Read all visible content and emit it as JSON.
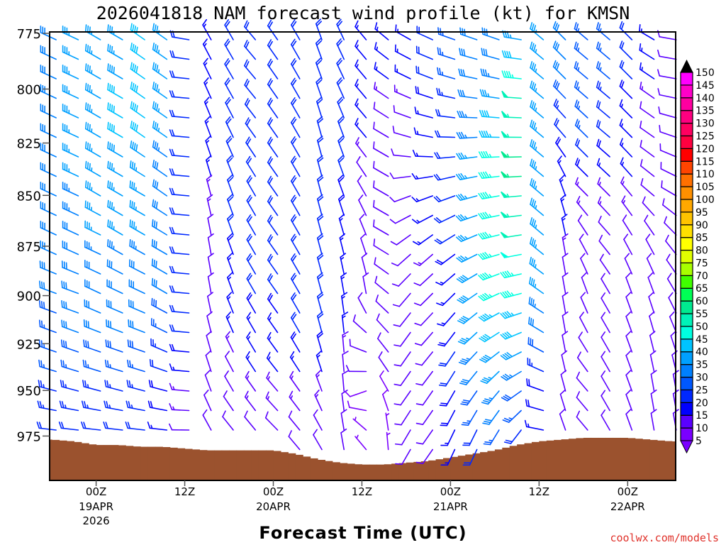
{
  "credit": "coolwx.com/models",
  "chart_data": {
    "type": "wind-barb-profile",
    "title": "2026041818 NAM forecast wind profile (kt) for KMSN",
    "xlabel": "Forecast Time (UTC)",
    "ylabel": "",
    "ylim": [
      1000,
      775
    ],
    "y_ticks": [
      775,
      800,
      825,
      850,
      875,
      900,
      925,
      950,
      975
    ],
    "x_ticks": [
      {
        "hour": 0,
        "label": "00Z",
        "date": "19APR",
        "year": "2026"
      },
      {
        "hour": 12,
        "label": "12Z"
      },
      {
        "hour": 24,
        "label": "00Z",
        "date": "20APR"
      },
      {
        "hour": 36,
        "label": "12Z"
      },
      {
        "hour": 48,
        "label": "00Z",
        "date": "21APR"
      },
      {
        "hour": 60,
        "label": "12Z"
      },
      {
        "hour": 72,
        "label": "00Z",
        "date": "22APR"
      }
    ],
    "xlim_hours": [
      -6.3,
      78.5
    ],
    "time_hours": [
      -6,
      -3,
      0,
      3,
      6,
      9,
      12,
      15,
      18,
      21,
      24,
      27,
      30,
      33,
      36,
      39,
      42,
      45,
      48,
      51,
      54,
      57,
      60,
      63,
      66,
      69,
      72,
      75,
      78
    ],
    "control_levels": [
      775,
      800,
      825,
      850,
      875,
      900,
      925,
      950,
      975
    ],
    "wind_dir_speed": [
      [
        [
          295,
          30
        ],
        [
          295,
          30
        ],
        [
          295,
          30
        ],
        [
          295,
          30
        ],
        [
          295,
          30
        ],
        [
          290,
          30
        ],
        [
          290,
          25
        ],
        [
          285,
          25
        ],
        [
          275,
          20
        ]
      ],
      [
        [
          295,
          35
        ],
        [
          295,
          35
        ],
        [
          295,
          35
        ],
        [
          295,
          35
        ],
        [
          295,
          30
        ],
        [
          290,
          30
        ],
        [
          290,
          30
        ],
        [
          285,
          25
        ],
        [
          275,
          20
        ]
      ],
      [
        [
          300,
          35
        ],
        [
          300,
          35
        ],
        [
          300,
          35
        ],
        [
          300,
          35
        ],
        [
          295,
          35
        ],
        [
          295,
          30
        ],
        [
          290,
          30
        ],
        [
          285,
          25
        ],
        [
          275,
          20
        ]
      ],
      [
        [
          300,
          35
        ],
        [
          300,
          40
        ],
        [
          300,
          40
        ],
        [
          300,
          35
        ],
        [
          300,
          35
        ],
        [
          295,
          30
        ],
        [
          290,
          30
        ],
        [
          285,
          25
        ],
        [
          275,
          20
        ]
      ],
      [
        [
          305,
          40
        ],
        [
          305,
          40
        ],
        [
          305,
          40
        ],
        [
          300,
          35
        ],
        [
          300,
          35
        ],
        [
          295,
          30
        ],
        [
          290,
          30
        ],
        [
          285,
          25
        ],
        [
          275,
          20
        ]
      ],
      [
        [
          305,
          35
        ],
        [
          305,
          35
        ],
        [
          305,
          35
        ],
        [
          305,
          30
        ],
        [
          300,
          30
        ],
        [
          300,
          30
        ],
        [
          295,
          25
        ],
        [
          285,
          20
        ],
        [
          275,
          15
        ]
      ],
      [
        [
          280,
          20
        ],
        [
          275,
          20
        ],
        [
          275,
          20
        ],
        [
          275,
          20
        ],
        [
          275,
          20
        ],
        [
          275,
          20
        ],
        [
          275,
          20
        ],
        [
          275,
          15
        ],
        [
          270,
          10
        ]
      ],
      [
        [
          330,
          15
        ],
        [
          335,
          15
        ],
        [
          340,
          15
        ],
        [
          345,
          15
        ],
        [
          350,
          10
        ],
        [
          350,
          10
        ],
        [
          345,
          10
        ],
        [
          340,
          10
        ],
        [
          330,
          10
        ]
      ],
      [
        [
          330,
          20
        ],
        [
          330,
          20
        ],
        [
          335,
          20
        ],
        [
          340,
          20
        ],
        [
          340,
          20
        ],
        [
          340,
          15
        ],
        [
          335,
          15
        ],
        [
          330,
          10
        ],
        [
          320,
          10
        ]
      ],
      [
        [
          320,
          20
        ],
        [
          320,
          20
        ],
        [
          325,
          20
        ],
        [
          330,
          20
        ],
        [
          330,
          20
        ],
        [
          330,
          20
        ],
        [
          330,
          15
        ],
        [
          325,
          15
        ],
        [
          320,
          10
        ]
      ],
      [
        [
          325,
          20
        ],
        [
          325,
          20
        ],
        [
          325,
          20
        ],
        [
          325,
          20
        ],
        [
          325,
          20
        ],
        [
          325,
          20
        ],
        [
          325,
          15
        ],
        [
          320,
          15
        ],
        [
          315,
          10
        ]
      ],
      [
        [
          330,
          20
        ],
        [
          330,
          20
        ],
        [
          330,
          20
        ],
        [
          330,
          20
        ],
        [
          330,
          20
        ],
        [
          330,
          20
        ],
        [
          330,
          20
        ],
        [
          325,
          15
        ],
        [
          320,
          10
        ]
      ],
      [
        [
          340,
          20
        ],
        [
          340,
          20
        ],
        [
          345,
          20
        ],
        [
          345,
          20
        ],
        [
          345,
          20
        ],
        [
          345,
          20
        ],
        [
          345,
          20
        ],
        [
          340,
          15
        ],
        [
          330,
          10
        ]
      ],
      [
        [
          335,
          20
        ],
        [
          335,
          20
        ],
        [
          340,
          20
        ],
        [
          340,
          20
        ],
        [
          345,
          15
        ],
        [
          350,
          15
        ],
        [
          355,
          15
        ],
        [
          355,
          10
        ],
        [
          350,
          10
        ]
      ],
      [
        [
          320,
          15
        ],
        [
          320,
          15
        ],
        [
          320,
          15
        ],
        [
          330,
          10
        ],
        [
          340,
          10
        ],
        [
          350,
          10
        ],
        [
          300,
          10
        ],
        [
          250,
          10
        ],
        [
          320,
          5
        ]
      ],
      [
        [
          310,
          15
        ],
        [
          305,
          15
        ],
        [
          300,
          10
        ],
        [
          300,
          10
        ],
        [
          300,
          10
        ],
        [
          310,
          10
        ],
        [
          320,
          10
        ],
        [
          330,
          10
        ],
        [
          355,
          5
        ]
      ],
      [
        [
          300,
          15
        ],
        [
          295,
          15
        ],
        [
          285,
          10
        ],
        [
          250,
          10
        ],
        [
          230,
          10
        ],
        [
          220,
          10
        ],
        [
          215,
          10
        ],
        [
          215,
          10
        ],
        [
          210,
          10
        ]
      ],
      [
        [
          295,
          20
        ],
        [
          290,
          20
        ],
        [
          280,
          15
        ],
        [
          250,
          15
        ],
        [
          230,
          15
        ],
        [
          225,
          10
        ],
        [
          220,
          10
        ],
        [
          215,
          10
        ],
        [
          215,
          10
        ]
      ],
      [
        [
          290,
          25
        ],
        [
          285,
          25
        ],
        [
          270,
          20
        ],
        [
          250,
          20
        ],
        [
          235,
          20
        ],
        [
          225,
          15
        ],
        [
          215,
          20
        ],
        [
          210,
          20
        ],
        [
          205,
          15
        ]
      ],
      [
        [
          290,
          30
        ],
        [
          280,
          30
        ],
        [
          265,
          35
        ],
        [
          255,
          35
        ],
        [
          245,
          35
        ],
        [
          235,
          40
        ],
        [
          225,
          35
        ],
        [
          215,
          30
        ],
        [
          205,
          20
        ]
      ],
      [
        [
          290,
          30
        ],
        [
          280,
          35
        ],
        [
          270,
          45
        ],
        [
          260,
          45
        ],
        [
          255,
          45
        ],
        [
          245,
          45
        ],
        [
          235,
          40
        ],
        [
          220,
          35
        ],
        [
          210,
          25
        ]
      ],
      [
        [
          280,
          35
        ],
        [
          275,
          50
        ],
        [
          270,
          55
        ],
        [
          265,
          55
        ],
        [
          260,
          50
        ],
        [
          255,
          45
        ],
        [
          245,
          40
        ],
        [
          235,
          30
        ],
        [
          215,
          20
        ]
      ],
      [
        [
          310,
          35
        ],
        [
          310,
          35
        ],
        [
          310,
          35
        ],
        [
          310,
          35
        ],
        [
          310,
          35
        ],
        [
          305,
          35
        ],
        [
          300,
          30
        ],
        [
          290,
          20
        ],
        [
          280,
          15
        ]
      ],
      [
        [
          315,
          30
        ],
        [
          315,
          30
        ],
        [
          320,
          20
        ],
        [
          340,
          15
        ],
        [
          350,
          15
        ],
        [
          350,
          10
        ],
        [
          350,
          10
        ],
        [
          345,
          10
        ],
        [
          340,
          10
        ]
      ],
      [
        [
          310,
          25
        ],
        [
          310,
          25
        ],
        [
          315,
          25
        ],
        [
          315,
          15
        ],
        [
          330,
          10
        ],
        [
          340,
          10
        ],
        [
          330,
          10
        ],
        [
          320,
          10
        ],
        [
          320,
          10
        ]
      ],
      [
        [
          310,
          25
        ],
        [
          310,
          25
        ],
        [
          310,
          20
        ],
        [
          315,
          15
        ],
        [
          320,
          10
        ],
        [
          330,
          10
        ],
        [
          330,
          10
        ],
        [
          330,
          10
        ],
        [
          330,
          10
        ]
      ],
      [
        [
          315,
          20
        ],
        [
          315,
          20
        ],
        [
          315,
          15
        ],
        [
          320,
          15
        ],
        [
          330,
          10
        ],
        [
          340,
          10
        ],
        [
          340,
          10
        ],
        [
          340,
          10
        ],
        [
          340,
          10
        ]
      ],
      [
        [
          300,
          15
        ],
        [
          305,
          15
        ],
        [
          305,
          10
        ],
        [
          310,
          10
        ],
        [
          330,
          10
        ],
        [
          340,
          10
        ],
        [
          345,
          10
        ],
        [
          350,
          10
        ],
        [
          350,
          10
        ]
      ],
      [
        [
          280,
          10
        ],
        [
          280,
          10
        ],
        [
          290,
          10
        ],
        [
          300,
          10
        ],
        [
          320,
          10
        ],
        [
          330,
          10
        ],
        [
          340,
          10
        ],
        [
          350,
          10
        ],
        [
          350,
          10
        ]
      ]
    ],
    "surface_pressure": [
      977,
      978,
      980,
      980,
      981,
      981,
      982,
      983,
      983,
      983,
      983,
      985,
      988,
      990,
      991,
      991,
      990,
      989,
      987,
      985,
      983,
      980,
      978,
      977,
      976,
      976,
      976,
      977,
      978
    ],
    "surface_color": "#9b522e",
    "colorbar": {
      "labels": [
        5,
        10,
        15,
        20,
        25,
        30,
        35,
        40,
        45,
        50,
        55,
        60,
        65,
        70,
        75,
        80,
        85,
        90,
        95,
        100,
        105,
        110,
        115,
        120,
        125,
        130,
        135,
        140,
        145,
        150
      ],
      "colors": [
        "#7a00ff",
        "#5a00ff",
        "#0000ff",
        "#0028ff",
        "#0058ff",
        "#0080ff",
        "#00a0ff",
        "#00c4ff",
        "#00ffe0",
        "#00f2b8",
        "#00ea90",
        "#00ff55",
        "#40ff00",
        "#a8ff00",
        "#e0ff00",
        "#ffff00",
        "#ffe000",
        "#ffc400",
        "#ffa800",
        "#ff9000",
        "#ff7000",
        "#ff4400",
        "#ff0000",
        "#ff0040",
        "#ff0060",
        "#ff0080",
        "#ff00a0",
        "#ff00c8",
        "#ff00ff"
      ],
      "under_color": "#7a00ff",
      "over_color": "#000000"
    }
  }
}
